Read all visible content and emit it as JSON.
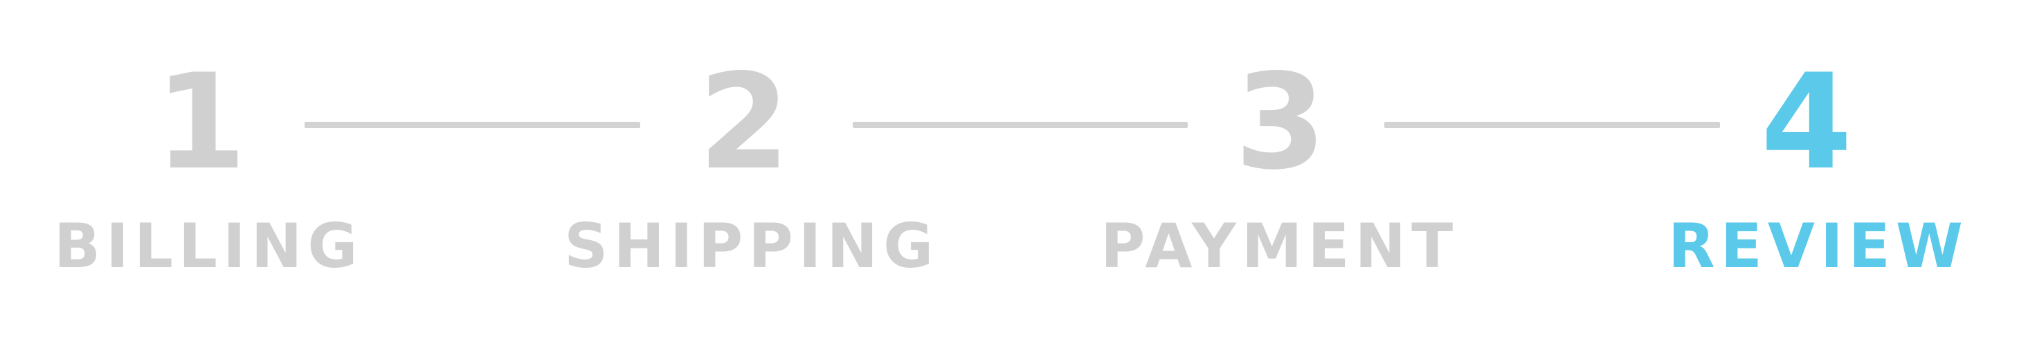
{
  "steps": [
    {
      "number": "1",
      "label": "BILLING",
      "active": false
    },
    {
      "number": "2",
      "label": "SHIPPING",
      "active": false
    },
    {
      "number": "3",
      "label": "PAYMENT",
      "active": false
    },
    {
      "number": "4",
      "label": "REVIEW",
      "active": true
    }
  ],
  "colors": {
    "inactive": "#d0d0d0",
    "active": "#5bc9ea",
    "connector": "#d3d3d3",
    "background": "#ffffff"
  }
}
